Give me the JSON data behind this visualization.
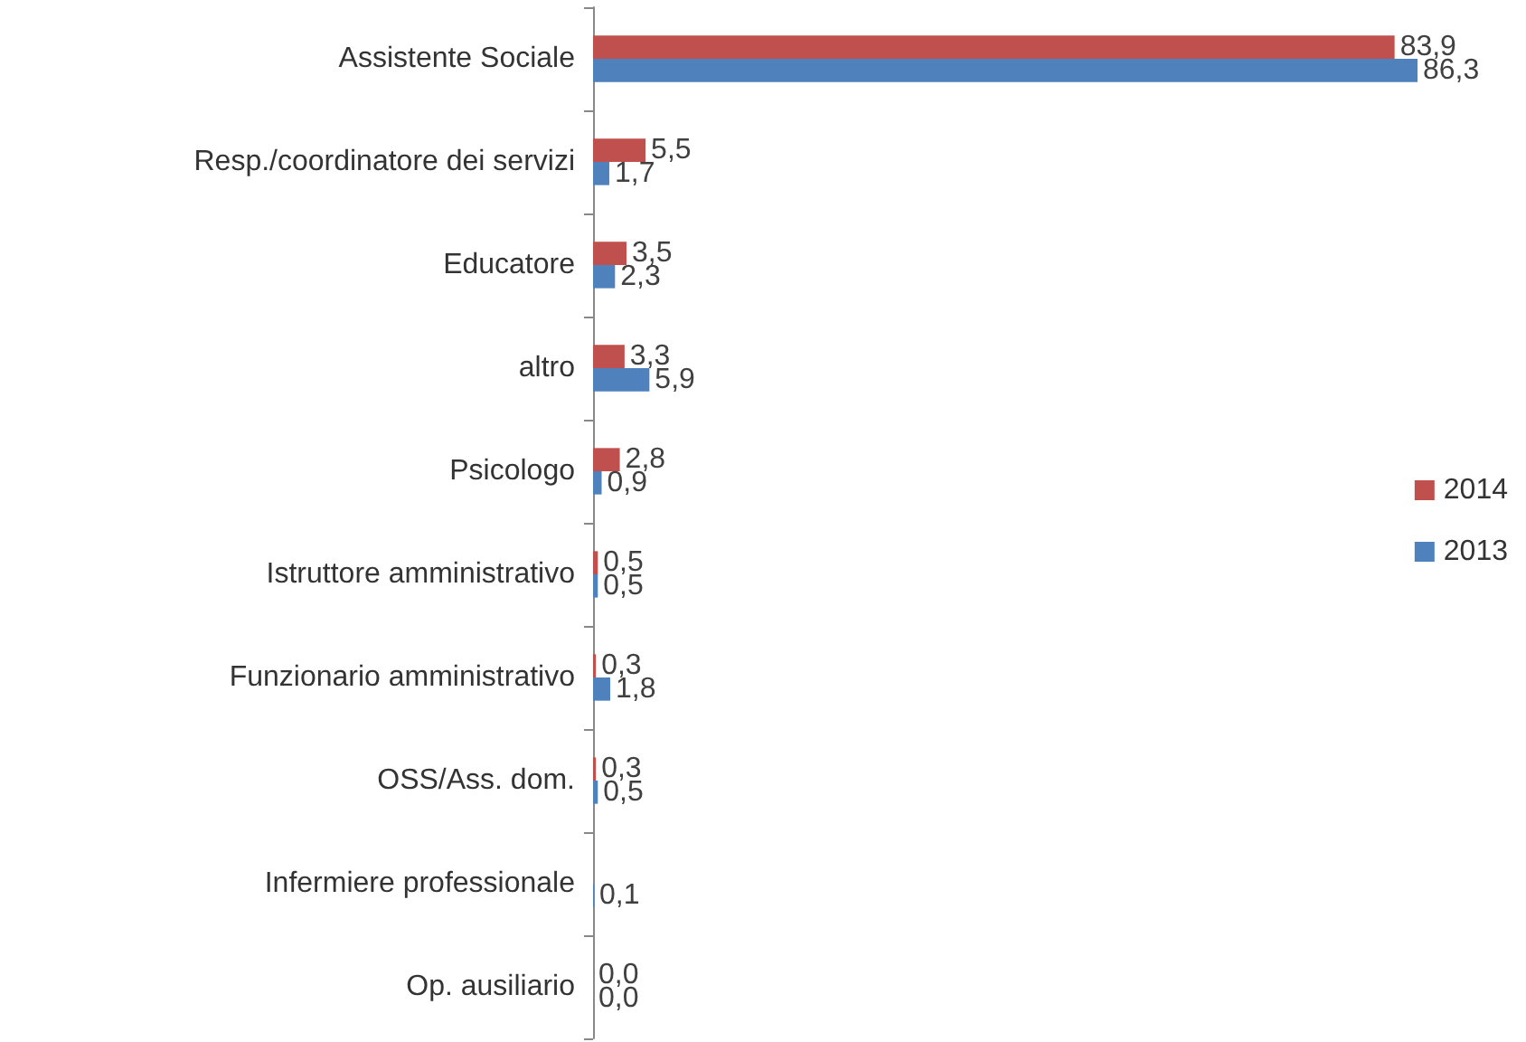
{
  "chart_data": {
    "type": "bar",
    "orientation": "horizontal",
    "categories": [
      "Assistente Sociale",
      "Resp./coordinatore dei servizi",
      "Educatore",
      "altro",
      "Psicologo",
      "Istruttore amministrativo",
      "Funzionario amministrativo",
      "OSS/Ass. dom.",
      "Infermiere professionale",
      "Op. ausiliario"
    ],
    "series": [
      {
        "name": "2014",
        "color": "#c0504d",
        "values": [
          83.9,
          5.5,
          3.5,
          3.3,
          2.8,
          0.5,
          0.3,
          0.3,
          null,
          0.0
        ],
        "value_labels": [
          "83,9",
          "5,5",
          "3,5",
          "3,3",
          "2,8",
          "0,5",
          "0,3",
          "0,3",
          null,
          "0,0"
        ]
      },
      {
        "name": "2013",
        "color": "#4f81bd",
        "values": [
          86.3,
          1.7,
          2.3,
          5.9,
          0.9,
          0.5,
          1.8,
          0.5,
          0.1,
          0.0
        ],
        "value_labels": [
          "86,3",
          "1,7",
          "2,3",
          "5,9",
          "0,9",
          "0,5",
          "1,8",
          "0,5",
          "0,1",
          "0,0"
        ]
      }
    ],
    "legend": "right"
  }
}
